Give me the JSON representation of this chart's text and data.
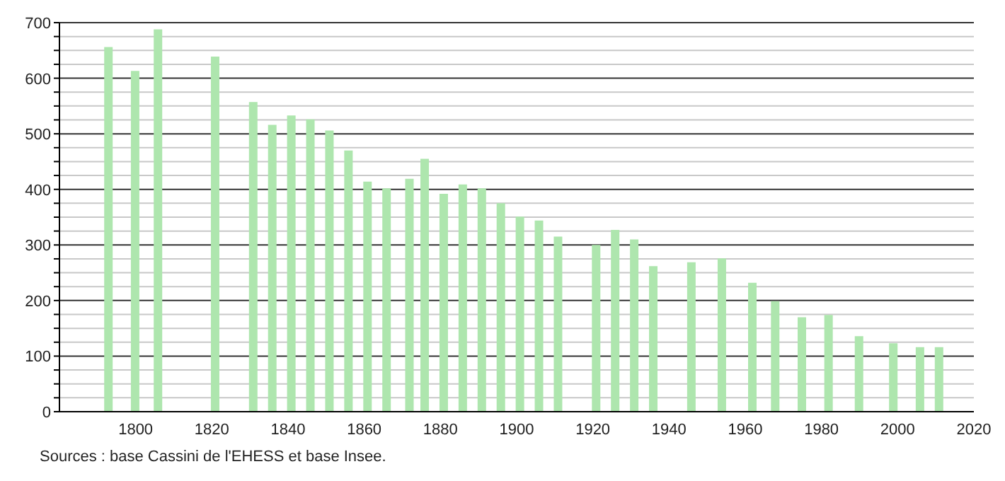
{
  "chart_data": {
    "type": "bar",
    "x": [
      1793,
      1800,
      1806,
      1821,
      1831,
      1836,
      1841,
      1846,
      1851,
      1856,
      1861,
      1866,
      1872,
      1876,
      1881,
      1886,
      1891,
      1896,
      1901,
      1906,
      1911,
      1921,
      1926,
      1931,
      1936,
      1946,
      1954,
      1962,
      1968,
      1975,
      1982,
      1990,
      1999,
      2006,
      2011
    ],
    "values": [
      656,
      613,
      688,
      639,
      557,
      516,
      533,
      526,
      506,
      470,
      414,
      402,
      419,
      455,
      392,
      409,
      402,
      375,
      351,
      344,
      315,
      300,
      327,
      310,
      262,
      269,
      276,
      232,
      199,
      170,
      174,
      136,
      123,
      116,
      116
    ],
    "color": "#aee6ae",
    "xlim": [
      1780,
      2020
    ],
    "xticks": [
      1800,
      1820,
      1840,
      1860,
      1880,
      1900,
      1920,
      1940,
      1960,
      1980,
      2000,
      2020
    ],
    "ylim": [
      0,
      700
    ],
    "yticks": [
      0,
      {
        "value": 25,
        "label": null
      },
      {
        "value": 50,
        "label": null
      },
      {
        "value": 75,
        "label": null
      },
      100,
      {
        "value": 125,
        "label": null
      },
      {
        "value": 150,
        "label": null
      },
      {
        "value": 175,
        "label": null
      },
      200,
      {
        "value": 225,
        "label": null
      },
      {
        "value": 250,
        "label": null
      },
      {
        "value": 275,
        "label": null
      },
      300,
      {
        "value": 325,
        "label": null
      },
      {
        "value": 350,
        "label": null
      },
      {
        "value": 375,
        "label": null
      },
      400,
      {
        "value": 425,
        "label": null
      },
      {
        "value": 450,
        "label": null
      },
      {
        "value": 475,
        "label": null
      },
      500,
      {
        "value": 525,
        "label": null
      },
      {
        "value": 550,
        "label": null
      },
      {
        "value": 575,
        "label": null
      },
      600,
      {
        "value": 625,
        "label": null
      },
      {
        "value": 650,
        "label": null
      },
      {
        "value": 675,
        "label": null
      },
      700
    ],
    "grid": "y",
    "legend": false,
    "annotations": [
      "Sources : base Cassini de l'EHESS et base Insee."
    ]
  }
}
